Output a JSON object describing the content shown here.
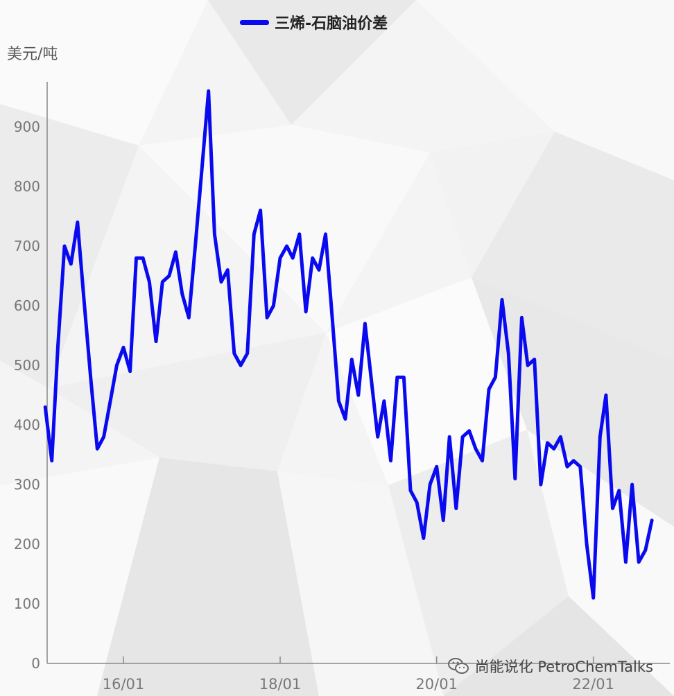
{
  "legend_label": "三烯-石脑油价差",
  "watermark_text": "尚能说化 PetroChemTalks",
  "watermark_icon": "wechat-icon",
  "colors": {
    "series": "#0a0af0",
    "axis": "#888888",
    "tick_text": "#777777"
  },
  "chart_data": {
    "type": "line",
    "title": "",
    "xlabel": "",
    "ylabel": "美元/吨",
    "ylim": [
      0,
      1000
    ],
    "yticks": [
      0,
      100,
      200,
      300,
      400,
      500,
      600,
      700,
      800,
      900
    ],
    "xticks": [
      "16/01",
      "18/01",
      "20/01",
      "22/01"
    ],
    "grid": false,
    "legend_position": "top-center",
    "series": [
      {
        "name": "三烯-石脑油价差",
        "x": [
          "2015-01",
          "2015-02",
          "2015-03",
          "2015-04",
          "2015-05",
          "2015-06",
          "2015-07",
          "2015-08",
          "2015-09",
          "2015-10",
          "2015-11",
          "2015-12",
          "2016-01",
          "2016-02",
          "2016-03",
          "2016-04",
          "2016-05",
          "2016-06",
          "2016-07",
          "2016-08",
          "2016-09",
          "2016-10",
          "2016-11",
          "2016-12",
          "2017-01",
          "2017-02",
          "2017-03",
          "2017-04",
          "2017-05",
          "2017-06",
          "2017-07",
          "2017-08",
          "2017-09",
          "2017-10",
          "2017-11",
          "2017-12",
          "2018-01",
          "2018-02",
          "2018-03",
          "2018-04",
          "2018-05",
          "2018-06",
          "2018-07",
          "2018-08",
          "2018-09",
          "2018-10",
          "2018-11",
          "2018-12",
          "2019-01",
          "2019-02",
          "2019-03",
          "2019-04",
          "2019-05",
          "2019-06",
          "2019-07",
          "2019-08",
          "2019-09",
          "2019-10",
          "2019-11",
          "2019-12",
          "2020-01",
          "2020-02",
          "2020-03",
          "2020-04",
          "2020-05",
          "2020-06",
          "2020-07",
          "2020-08",
          "2020-09",
          "2020-10",
          "2020-11",
          "2020-12",
          "2021-01",
          "2021-02",
          "2021-03",
          "2021-04",
          "2021-05",
          "2021-06",
          "2021-07",
          "2021-08",
          "2021-09",
          "2021-10",
          "2021-11",
          "2021-12",
          "2022-01",
          "2022-02",
          "2022-03",
          "2022-04",
          "2022-05",
          "2022-06",
          "2022-07",
          "2022-08",
          "2022-09",
          "2022-10"
        ],
        "values": [
          430,
          340,
          530,
          700,
          670,
          740,
          610,
          480,
          360,
          380,
          440,
          500,
          530,
          490,
          680,
          680,
          640,
          540,
          640,
          650,
          690,
          620,
          580,
          700,
          830,
          960,
          720,
          640,
          660,
          520,
          500,
          520,
          720,
          760,
          580,
          600,
          680,
          700,
          680,
          720,
          590,
          680,
          660,
          720,
          580,
          440,
          410,
          510,
          450,
          570,
          480,
          380,
          440,
          340,
          480,
          480,
          290,
          270,
          210,
          300,
          330,
          240,
          380,
          260,
          380,
          390,
          360,
          340,
          460,
          480,
          610,
          520,
          310,
          580,
          500,
          510,
          300,
          370,
          360,
          380,
          330,
          340,
          330,
          200,
          110,
          380,
          450,
          260,
          290,
          170,
          300,
          170,
          190,
          240
        ]
      }
    ]
  }
}
